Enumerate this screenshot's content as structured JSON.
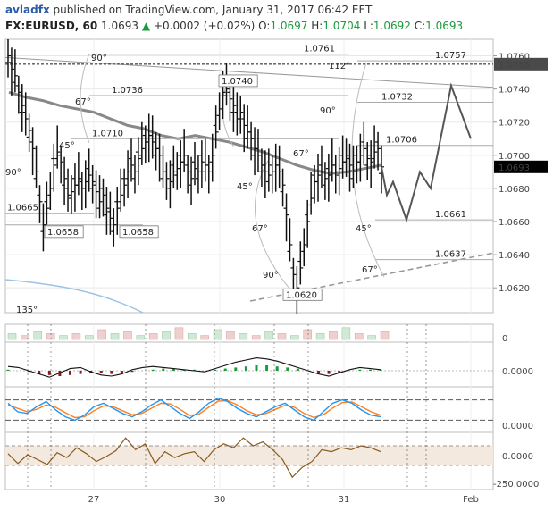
{
  "header": {
    "author": "avladfx",
    "published": "published on TradingView.com, January 31, 2017 06:42 EET",
    "symbol": "FX:EURUSD, 60",
    "last": "1.0693",
    "change": "+0.0002 (+0.02%)",
    "o_label": "O:",
    "o": "1.0697",
    "h_label": "H:",
    "h": "1.0704",
    "l_label": "L:",
    "l": "1.0692",
    "c_label": "C:",
    "c": "1.0693"
  },
  "colors": {
    "up": "#1c9b3d",
    "down": "#8b1a1a",
    "ma": "#888888",
    "stoch_k": "#2196f3",
    "stoch_d": "#ff7f1e",
    "cci": "#8b5a1e",
    "cci_band": "#f3e9df",
    "grid": "#e8e8e8"
  },
  "chart_data": [
    {
      "type": "line",
      "panel": "price",
      "ylim": [
        1.0605,
        1.077
      ],
      "y_ticks": [
        "1.0760",
        "1.0740",
        "1.0720",
        "1.0700",
        "1.0680",
        "1.0660",
        "1.0640",
        "1.0620"
      ],
      "x_ticks": [
        "27",
        "30",
        "31",
        "Feb"
      ],
      "price_markers": [
        {
          "label": "1.0755",
          "value": 1.0755,
          "style": "dark"
        },
        {
          "label": "1.0693",
          "value": 1.0693,
          "style": "black"
        }
      ],
      "price_bars": [
        1.076,
        1.0752,
        1.0748,
        1.0738,
        1.073,
        1.0722,
        1.0715,
        1.0704,
        1.069,
        1.0672,
        1.0658,
        1.0668,
        1.068,
        1.0694,
        1.0702,
        1.0696,
        1.0686,
        1.0676,
        1.0678,
        1.0682,
        1.0686,
        1.068,
        1.0684,
        1.0688,
        1.0684,
        1.0678,
        1.0672,
        1.0676,
        1.0668,
        1.0662,
        1.0658,
        1.0668,
        1.0676,
        1.0682,
        1.069,
        1.0694,
        1.069,
        1.0698,
        1.0704,
        1.0708,
        1.0712,
        1.0708,
        1.0704,
        1.07,
        1.069,
        1.0686,
        1.0684,
        1.069,
        1.0692,
        1.0696,
        1.07,
        1.069,
        1.0686,
        1.0692,
        1.069,
        1.0696,
        1.0694,
        1.069,
        1.07,
        1.0714,
        1.0728,
        1.0738,
        1.074,
        1.0734,
        1.073,
        1.0722,
        1.0726,
        1.0718,
        1.0714,
        1.071,
        1.0704,
        1.07,
        1.0694,
        1.069,
        1.0688,
        1.069,
        1.0694,
        1.069,
        1.0682,
        1.0664,
        1.0646,
        1.0628,
        1.062,
        1.0632,
        1.0646,
        1.066,
        1.0674,
        1.0684,
        1.0688,
        1.069,
        1.0686,
        1.0688,
        1.0694,
        1.069,
        1.0692,
        1.0696,
        1.07,
        1.0694,
        1.069,
        1.0696,
        1.07,
        1.0704,
        1.0698,
        1.0696,
        1.0702,
        1.0704,
        1.0693
      ],
      "moving_average": [
        1.0738,
        1.0735,
        1.0733,
        1.073,
        1.0728,
        1.0726,
        1.0722,
        1.0718,
        1.0716,
        1.0712,
        1.071,
        1.0712,
        1.071,
        1.0708,
        1.0705,
        1.0702,
        1.0698,
        1.0694,
        1.0691,
        1.0689,
        1.069,
        1.0692,
        1.0694
      ],
      "projection": [
        1.0693,
        1.0676,
        1.0684,
        1.0661,
        1.069,
        1.068,
        1.0742,
        1.071
      ],
      "fib_labels": [
        "1.0761",
        "1.0757",
        "1.0736",
        "1.0732",
        "1.0710",
        "1.0706",
        "1.0661",
        "1.0637",
        "1.0665",
        "1.0740",
        "1.0658",
        "1.0658",
        "1.0620"
      ],
      "angle_labels": [
        "90°",
        "112°",
        "67°",
        "90°",
        "45°",
        "67°",
        "45°",
        "45°",
        "67°",
        "67°",
        "90°",
        "90°",
        "135°"
      ]
    },
    {
      "type": "bar",
      "panel": "volume",
      "y_ticks": [
        "0"
      ],
      "values": [
        3,
        2,
        4,
        3,
        2,
        3,
        2,
        5,
        3,
        4,
        2,
        3,
        4,
        6,
        3,
        2,
        5,
        4,
        3,
        2,
        4,
        3,
        2,
        5,
        3,
        4,
        6,
        3,
        2,
        4
      ]
    },
    {
      "type": "line",
      "panel": "macd",
      "y_ticks": [
        "0.0000"
      ],
      "macd": [
        0.4,
        0.3,
        0.0,
        -0.3,
        -0.6,
        -0.2,
        0.2,
        0.3,
        -0.1,
        -0.4,
        -0.5,
        -0.3,
        0.1,
        0.3,
        0.4,
        0.3,
        0.2,
        0.1,
        0.0,
        -0.1,
        0.2,
        0.5,
        0.8,
        1.0,
        1.2,
        1.1,
        0.9,
        0.6,
        0.3,
        0.0,
        -0.3,
        -0.5,
        -0.2,
        0.1,
        0.3,
        0.2,
        0.1
      ],
      "histogram": [
        0.1,
        0.0,
        -0.1,
        -0.3,
        -0.4,
        -0.5,
        -0.4,
        -0.3,
        -0.2,
        -0.2,
        -0.3,
        -0.2,
        -0.1,
        0.0,
        0.1,
        0.2,
        0.2,
        0.1,
        0.1,
        0.0,
        0.1,
        0.2,
        0.3,
        0.4,
        0.5,
        0.5,
        0.4,
        0.3,
        0.2,
        0.0,
        -0.2,
        -0.3,
        -0.2,
        0.0,
        0.1,
        0.1,
        0.1
      ]
    },
    {
      "type": "line",
      "panel": "stochastic",
      "y_ticks": [
        "0.0000"
      ],
      "series": [
        {
          "values": [
            70,
            45,
            40,
            60,
            75,
            50,
            30,
            20,
            35,
            60,
            70,
            55,
            40,
            30,
            45,
            65,
            80,
            60,
            40,
            25,
            45,
            70,
            85,
            75,
            55,
            40,
            30,
            45,
            60,
            70,
            50,
            30,
            20,
            45,
            70,
            80,
            70,
            50,
            35,
            30
          ]
        },
        {
          "values": [
            65,
            55,
            45,
            52,
            65,
            58,
            42,
            28,
            30,
            48,
            62,
            60,
            48,
            36,
            40,
            55,
            70,
            68,
            52,
            34,
            38,
            58,
            76,
            78,
            65,
            48,
            36,
            40,
            52,
            64,
            58,
            40,
            28,
            36,
            56,
            72,
            74,
            60,
            45,
            35
          ]
        }
      ]
    },
    {
      "type": "line",
      "panel": "cci",
      "y_ticks": [
        "0.0000",
        "-250.0000"
      ],
      "values": [
        20,
        -80,
        10,
        -40,
        -90,
        30,
        -20,
        80,
        20,
        -60,
        -10,
        50,
        180,
        60,
        120,
        -80,
        40,
        -20,
        20,
        40,
        -60,
        60,
        120,
        80,
        180,
        100,
        140,
        60,
        -40,
        -220,
        -120,
        -60,
        60,
        40,
        80,
        60,
        100,
        80,
        40
      ]
    }
  ]
}
